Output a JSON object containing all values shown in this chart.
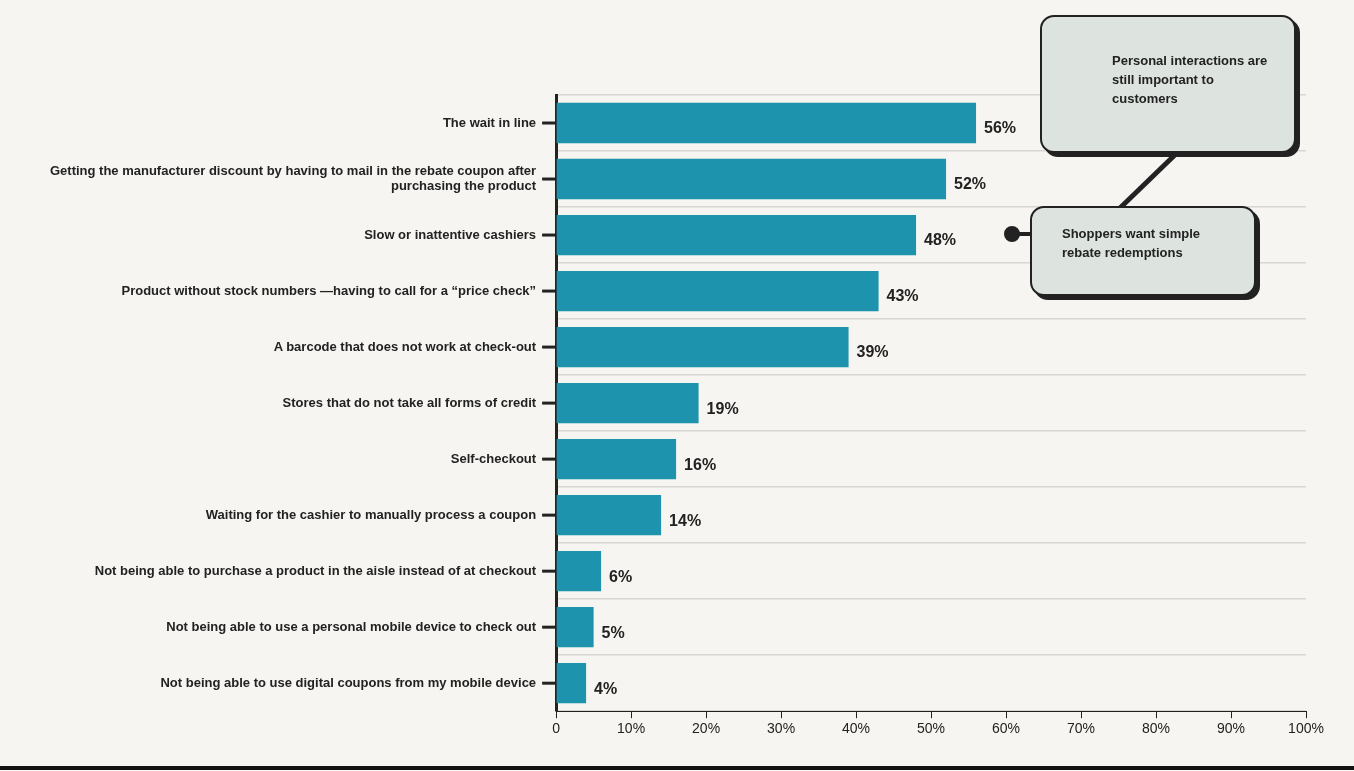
{
  "chart_data": {
    "type": "bar",
    "orientation": "horizontal",
    "categories": [
      "The wait in line",
      "Getting the manufacturer discount by having to mail in the rebate coupon after purchasing the product",
      "Slow or inattentive cashiers",
      "Product without stock numbers —having to call for a “price check”",
      "A barcode that does not work at check-out",
      "Stores that do not take all forms of credit",
      "Self-checkout",
      "Waiting for the cashier to manually process a coupon",
      "Not being able to purchase a product in the aisle instead of at checkout",
      "Not being able to use a personal mobile device to check out",
      "Not being able to use digital coupons from my mobile device"
    ],
    "values": [
      56,
      52,
      48,
      43,
      39,
      19,
      16,
      14,
      6,
      5,
      4
    ],
    "value_labels": [
      "56%",
      "52%",
      "48%",
      "43%",
      "39%",
      "19%",
      "16%",
      "14%",
      "6%",
      "5%",
      "4%"
    ],
    "color": "#1d93ad",
    "xlim": [
      0,
      100
    ],
    "xticks": [
      0,
      {
        "value": 10,
        "label": "10%"
      },
      {
        "value": 20,
        "label": "20%"
      },
      {
        "value": 30,
        "label": "30%"
      },
      {
        "value": 40,
        "label": "40%"
      },
      {
        "value": 50,
        "label": "50%"
      },
      {
        "value": 60,
        "label": "60%"
      },
      {
        "value": 70,
        "label": "70%"
      },
      {
        "value": 80,
        "label": "80%"
      },
      {
        "value": 90,
        "label": "90%"
      },
      {
        "value": 100,
        "label": "100%"
      }
    ],
    "grid": "y",
    "legend": false,
    "annotations": [
      "Personal interactions are still important to customers",
      "Shoppers want simple rebate redemptions"
    ]
  }
}
